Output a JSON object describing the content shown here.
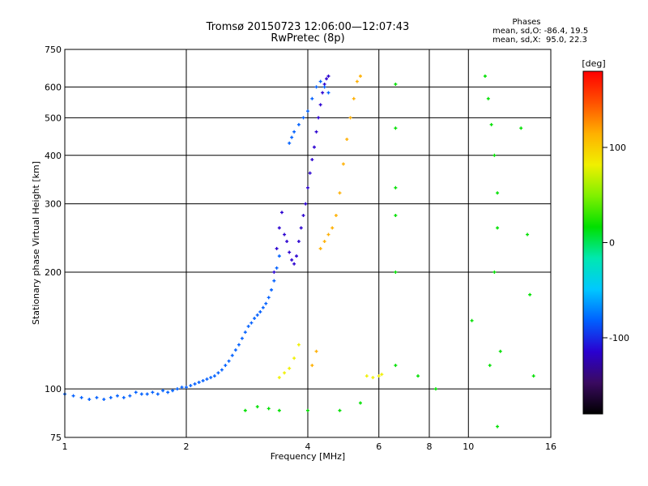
{
  "header": {
    "title_line1": "Tromsø 20150723 12:06:00—12:07:43",
    "title_line2": "RwPretec (8p)",
    "stats_title": "Phases",
    "stats_o": "mean, sd,O: -86.4, 19.5",
    "stats_x": "mean, sd,X:  95.0, 22.3"
  },
  "colors": {
    "grid": "#000000",
    "colorbar": [
      "#000000",
      "#3a0a60",
      "#2a00d0",
      "#0060ff",
      "#00c8ff",
      "#00e8b0",
      "#00e000",
      "#80f000",
      "#f0f000",
      "#ffb000",
      "#ff5000",
      "#ff0000"
    ]
  },
  "chart_data": {
    "type": "scatter",
    "xlabel": "Frequency [MHz]",
    "ylabel": "Stationary phase Virtual Height [km]",
    "x_scale": "log",
    "y_scale": "log",
    "xlim": [
      1,
      16
    ],
    "ylim": [
      75,
      750
    ],
    "xticks": [
      1,
      2,
      4,
      6,
      8,
      10,
      16
    ],
    "xtick_labels": [
      "1",
      "2",
      "4",
      "6",
      "8",
      "10",
      "16"
    ],
    "yticks": [
      75,
      100,
      200,
      300,
      400,
      500,
      600,
      750
    ],
    "ytick_labels": [
      "75",
      "100",
      "200",
      "300",
      "400",
      "500",
      "600",
      "750"
    ],
    "grid": true,
    "colorbar": {
      "label": "[deg]",
      "range": [
        -180,
        180
      ],
      "ticks": [
        100,
        0,
        -100
      ],
      "tick_labels": [
        "100",
        "0",
        "-100"
      ]
    },
    "traces": [
      {
        "name": "o_low_E",
        "phase": -90,
        "points": [
          [
            1.0,
            97
          ],
          [
            1.05,
            96
          ],
          [
            1.1,
            95
          ],
          [
            1.15,
            94
          ],
          [
            1.2,
            95
          ],
          [
            1.25,
            94
          ],
          [
            1.3,
            95
          ],
          [
            1.35,
            96
          ],
          [
            1.4,
            95
          ],
          [
            1.45,
            96
          ],
          [
            1.5,
            98
          ],
          [
            1.55,
            97
          ],
          [
            1.6,
            97
          ],
          [
            1.65,
            98
          ],
          [
            1.7,
            97
          ],
          [
            1.75,
            99
          ],
          [
            1.8,
            98
          ],
          [
            1.85,
            99
          ],
          [
            1.9,
            100
          ],
          [
            1.95,
            101
          ],
          [
            2.0,
            101
          ],
          [
            2.05,
            102
          ],
          [
            2.1,
            103
          ],
          [
            2.15,
            104
          ],
          [
            2.2,
            105
          ],
          [
            2.25,
            106
          ],
          [
            2.3,
            107
          ],
          [
            2.35,
            108
          ],
          [
            2.4,
            110
          ],
          [
            2.45,
            112
          ],
          [
            2.5,
            115
          ],
          [
            2.55,
            118
          ],
          [
            2.6,
            122
          ],
          [
            2.65,
            126
          ],
          [
            2.7,
            130
          ],
          [
            2.75,
            135
          ],
          [
            2.8,
            140
          ],
          [
            2.85,
            145
          ],
          [
            2.9,
            148
          ],
          [
            2.95,
            152
          ],
          [
            3.0,
            155
          ],
          [
            3.05,
            158
          ],
          [
            3.1,
            162
          ],
          [
            3.15,
            166
          ],
          [
            3.2,
            172
          ],
          [
            3.25,
            180
          ],
          [
            3.3,
            190
          ],
          [
            3.35,
            205
          ],
          [
            3.4,
            220
          ]
        ]
      },
      {
        "name": "o_F_layer",
        "phase": -100,
        "points": [
          [
            3.3,
            200
          ],
          [
            3.35,
            230
          ],
          [
            3.4,
            260
          ],
          [
            3.45,
            285
          ],
          [
            3.5,
            250
          ],
          [
            3.55,
            240
          ],
          [
            3.6,
            225
          ],
          [
            3.65,
            215
          ],
          [
            3.7,
            210
          ],
          [
            3.75,
            220
          ],
          [
            3.8,
            240
          ],
          [
            3.85,
            260
          ],
          [
            3.9,
            280
          ],
          [
            3.95,
            300
          ],
          [
            4.0,
            330
          ],
          [
            4.05,
            360
          ],
          [
            4.1,
            390
          ],
          [
            4.15,
            420
          ],
          [
            4.2,
            460
          ],
          [
            4.25,
            500
          ],
          [
            4.3,
            540
          ],
          [
            4.35,
            580
          ],
          [
            4.4,
            610
          ],
          [
            4.45,
            630
          ],
          [
            4.5,
            640
          ]
        ]
      },
      {
        "name": "o_F_spread",
        "phase": -80,
        "points": [
          [
            3.6,
            430
          ],
          [
            3.65,
            445
          ],
          [
            3.7,
            460
          ],
          [
            3.8,
            480
          ],
          [
            3.9,
            500
          ],
          [
            4.0,
            520
          ],
          [
            4.1,
            560
          ],
          [
            4.2,
            600
          ],
          [
            4.3,
            620
          ],
          [
            4.4,
            600
          ],
          [
            4.5,
            580
          ]
        ]
      },
      {
        "name": "x_F_layer",
        "phase": 100,
        "points": [
          [
            4.1,
            115
          ],
          [
            4.2,
            125
          ],
          [
            4.3,
            230
          ],
          [
            4.4,
            240
          ],
          [
            4.5,
            250
          ],
          [
            4.6,
            260
          ],
          [
            4.7,
            280
          ],
          [
            4.8,
            320
          ],
          [
            4.9,
            380
          ],
          [
            5.0,
            440
          ],
          [
            5.1,
            500
          ],
          [
            5.2,
            560
          ],
          [
            5.3,
            620
          ],
          [
            5.4,
            640
          ]
        ]
      },
      {
        "name": "x_E_region",
        "phase": 90,
        "points": [
          [
            3.4,
            107
          ],
          [
            3.5,
            110
          ],
          [
            3.6,
            113
          ],
          [
            3.7,
            120
          ],
          [
            3.8,
            130
          ],
          [
            5.6,
            108
          ],
          [
            5.8,
            107
          ],
          [
            6.0,
            108
          ],
          [
            6.1,
            109
          ]
        ]
      },
      {
        "name": "scatter_mixed",
        "phase": 30,
        "points": [
          [
            2.8,
            88
          ],
          [
            3.0,
            90
          ],
          [
            3.2,
            89
          ],
          [
            3.4,
            88
          ],
          [
            4.0,
            88
          ],
          [
            4.8,
            88
          ],
          [
            5.4,
            92
          ],
          [
            6.6,
            610
          ],
          [
            6.6,
            470
          ],
          [
            6.6,
            330
          ],
          [
            6.6,
            280
          ],
          [
            6.6,
            200
          ],
          [
            6.6,
            115
          ],
          [
            7.5,
            108
          ],
          [
            8.3,
            100
          ],
          [
            10.2,
            150
          ],
          [
            11.0,
            640
          ],
          [
            11.2,
            560
          ],
          [
            11.4,
            480
          ],
          [
            11.6,
            400
          ],
          [
            11.8,
            320
          ],
          [
            11.8,
            260
          ],
          [
            11.6,
            200
          ],
          [
            11.3,
            115
          ],
          [
            12.0,
            125
          ],
          [
            13.5,
            470
          ],
          [
            14.0,
            250
          ],
          [
            14.2,
            175
          ],
          [
            14.5,
            108
          ],
          [
            11.8,
            80
          ]
        ]
      }
    ]
  }
}
